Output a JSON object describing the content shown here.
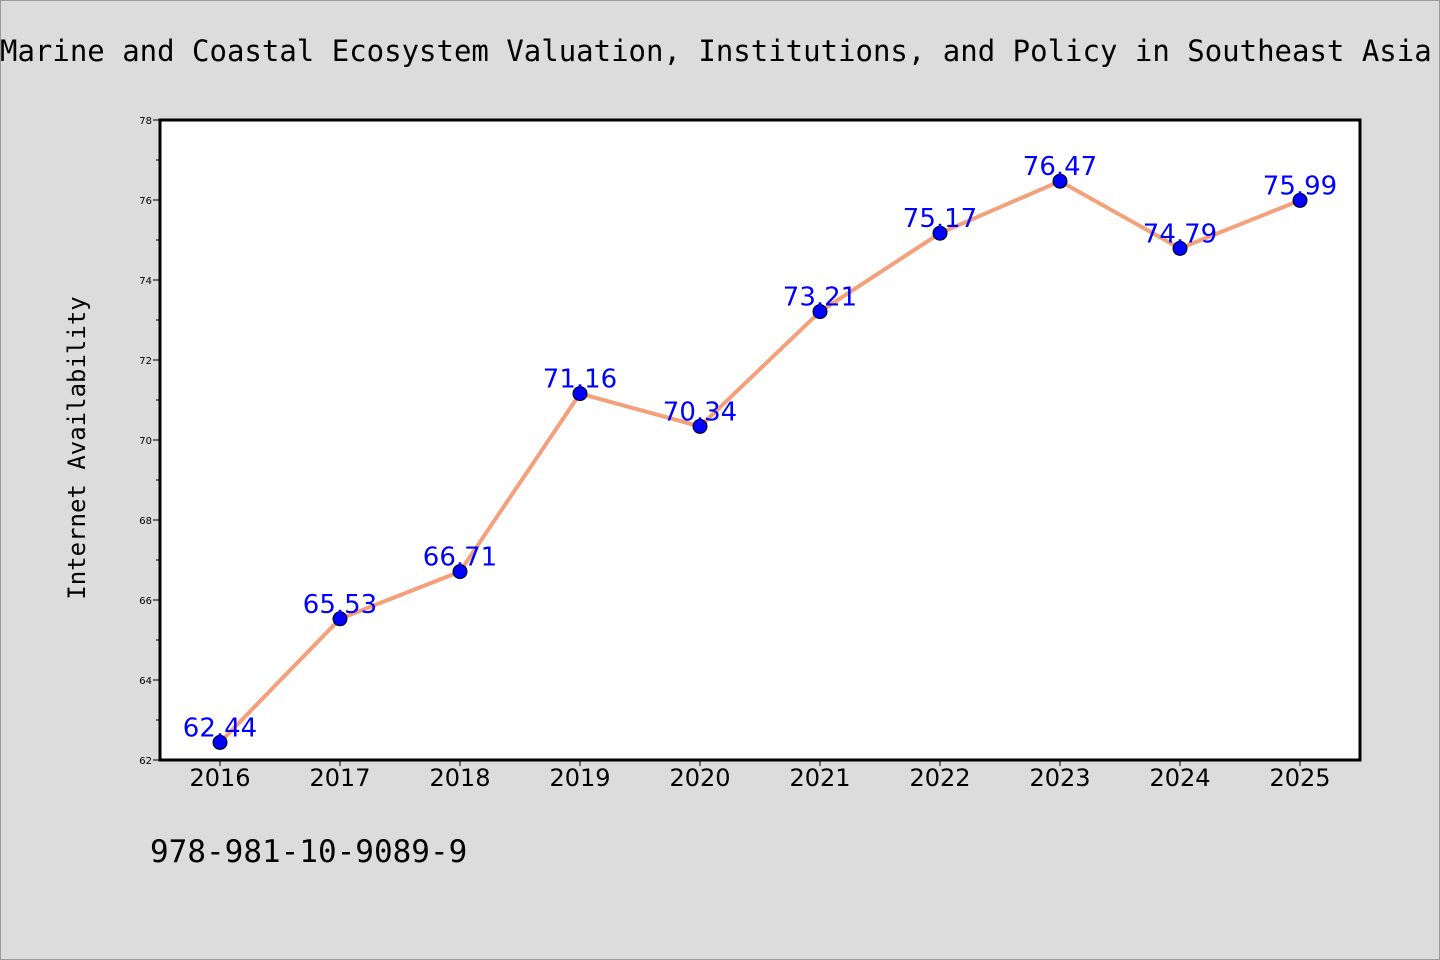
{
  "chart_data": {
    "type": "line",
    "title": "Marine and Coastal Ecosystem Valuation, Institutions, and Policy in Southeast Asia",
    "xlabel": "",
    "ylabel": "Internet Availability",
    "categories": [
      "2016",
      "2017",
      "2018",
      "2019",
      "2020",
      "2021",
      "2022",
      "2023",
      "2024",
      "2025"
    ],
    "series": [
      {
        "values": [
          62.44,
          65.53,
          66.71,
          71.16,
          70.34,
          73.21,
          75.17,
          76.47,
          74.79,
          75.99
        ],
        "labels": [
          "62.44",
          "65.53",
          "66.71",
          "71.16",
          "70.34",
          "73.21",
          "75.17",
          "76.47",
          "74.79",
          "75.99"
        ]
      }
    ],
    "ylim": [
      62,
      78
    ],
    "yticks": [
      "62",
      "64",
      "66",
      "68",
      "70",
      "72",
      "74",
      "76",
      "78"
    ],
    "grid": false,
    "legend": "none",
    "colors": {
      "line": "#f4a07a",
      "marker": "#0000ff",
      "label": "#0000ff",
      "background": "#dcdcdc",
      "plot_background": "#ffffff"
    }
  },
  "footer": {
    "isbn": "978-981-10-9089-9"
  }
}
